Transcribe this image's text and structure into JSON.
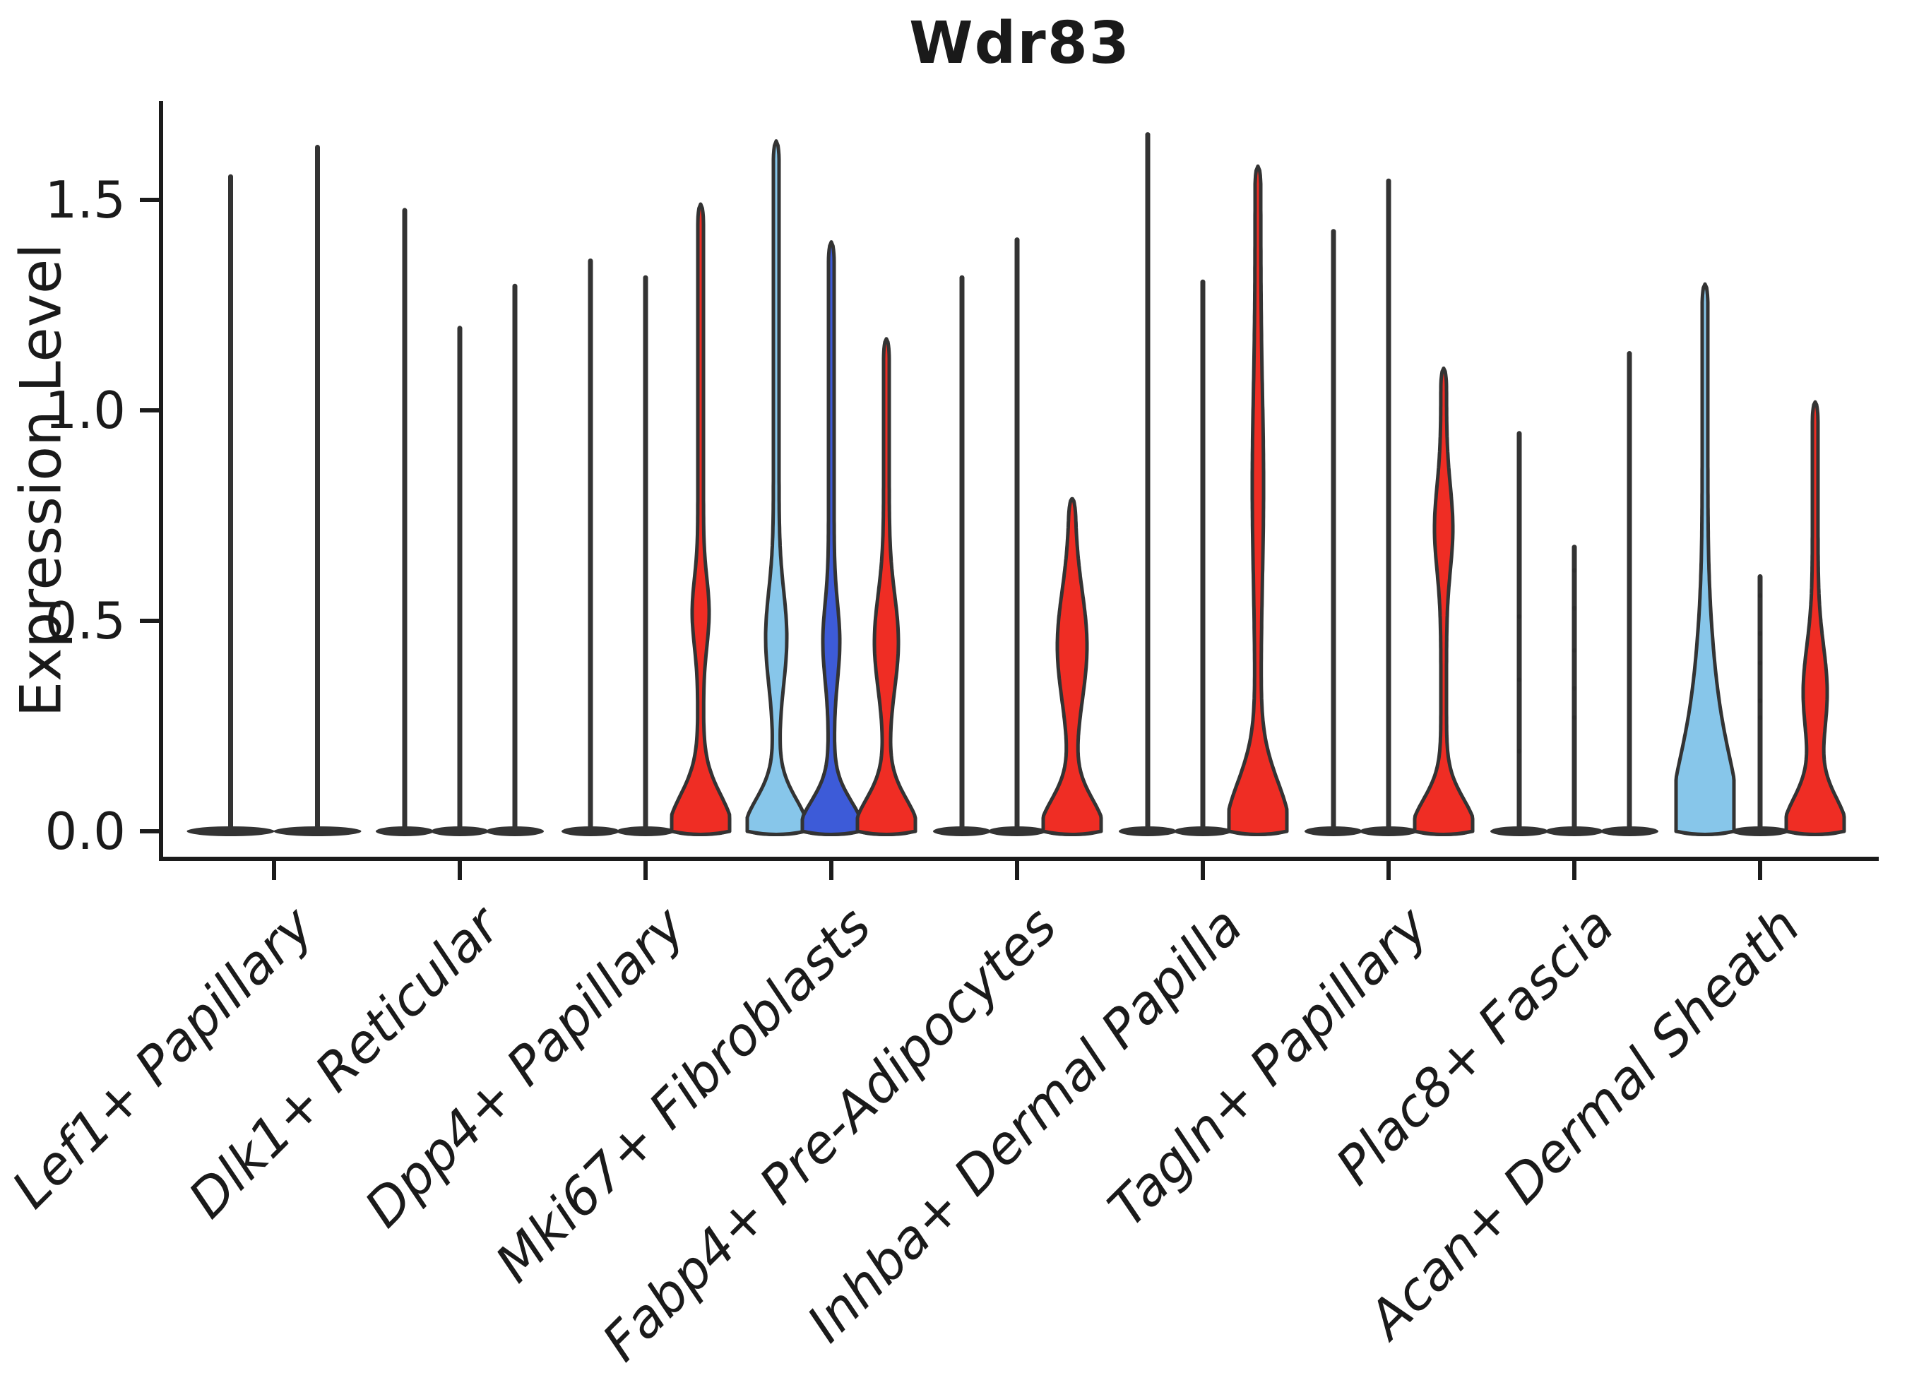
{
  "figure": {
    "title": "Wdr83",
    "background": "#ffffff"
  },
  "palette": {
    "red": "#EF2D24",
    "light_blue": "#87C6EA",
    "dark_blue": "#3D5BD8",
    "plain": "#333333",
    "edge": "#333333",
    "spine": "#1b1b1b"
  },
  "chart_data": {
    "type": "violin",
    "title": "Wdr83",
    "xlabel": "",
    "ylabel": "Expression Level",
    "ylim": [
      -0.065,
      1.735
    ],
    "yticks": [
      0.0,
      0.5,
      1.0,
      1.5
    ],
    "ytick_labels": [
      "0.0",
      "0.5",
      "1.0",
      "1.5"
    ],
    "grid": false,
    "legend": "none",
    "categories": [
      "Lef1+ Papillary",
      "Dlk1+ Reticular",
      "Dpp4+ Papillary",
      "Mki67+ Fibroblasts",
      "Fabp4+ Pre-Adipocytes",
      "Inhba+ Dermal Papilla",
      "Tagln+ Papillary",
      "Plac8+ Fascia",
      "Acan+ Dermal Sheath"
    ],
    "groups": [
      {
        "category": "Lef1+ Papillary",
        "violins": [
          {
            "color": "plain",
            "max": 1.56
          },
          {
            "color": "plain",
            "max": 1.63
          }
        ]
      },
      {
        "category": "Dlk1+ Reticular",
        "violins": [
          {
            "color": "plain",
            "max": 1.48
          },
          {
            "color": "plain",
            "max": 1.2
          },
          {
            "color": "plain",
            "max": 1.3
          }
        ]
      },
      {
        "category": "Dpp4+ Papillary",
        "violins": [
          {
            "color": "plain",
            "max": 1.36
          },
          {
            "color": "plain",
            "max": 1.32
          },
          {
            "color": "red",
            "max": 1.49,
            "base_sigma": 0.085,
            "bulge": {
              "center": 0.52,
              "spread": 0.08,
              "halfwidth": 8
            }
          }
        ]
      },
      {
        "category": "Mki67+ Fibroblasts",
        "violins": [
          {
            "color": "light_blue",
            "max": 1.64,
            "base_sigma": 0.075,
            "bulge": {
              "center": 0.46,
              "spread": 0.11,
              "halfwidth": 11
            }
          },
          {
            "color": "dark_blue",
            "max": 1.4,
            "base_sigma": 0.07,
            "bulge": {
              "center": 0.45,
              "spread": 0.09,
              "halfwidth": 8
            }
          },
          {
            "color": "red",
            "max": 1.17,
            "base_sigma": 0.075,
            "bulge": {
              "center": 0.45,
              "spread": 0.11,
              "halfwidth": 13
            }
          }
        ]
      },
      {
        "category": "Fabp4+ Pre-Adipocytes",
        "violins": [
          {
            "color": "plain",
            "max": 1.32
          },
          {
            "color": "plain",
            "max": 1.41
          },
          {
            "color": "red",
            "max": 0.79,
            "base_sigma": 0.075,
            "bulge": {
              "center": 0.44,
              "spread": 0.13,
              "halfwidth": 17
            }
          }
        ]
      },
      {
        "category": "Inhba+ Dermal Papilla",
        "violins": [
          {
            "color": "plain",
            "max": 1.66
          },
          {
            "color": "plain",
            "max": 1.31
          },
          {
            "color": "red",
            "max": 1.58,
            "base_sigma": 0.115,
            "bulge": {
              "center": 0.82,
              "spread": 0.22,
              "halfwidth": 4
            }
          }
        ]
      },
      {
        "category": "Tagln+ Papillary",
        "violins": [
          {
            "color": "plain",
            "max": 1.43
          },
          {
            "color": "plain",
            "max": 1.55
          },
          {
            "color": "red",
            "max": 1.1,
            "base_sigma": 0.075,
            "bulge": {
              "center": 0.72,
              "spread": 0.1,
              "halfwidth": 9
            }
          }
        ]
      },
      {
        "category": "Plac8+ Fascia",
        "violins": [
          {
            "color": "plain",
            "max": 0.95,
            "points": [
              0.51,
              0.36,
              0.19
            ]
          },
          {
            "color": "plain",
            "max": 0.68,
            "points": [
              0.62,
              0.53,
              0.43,
              0.34,
              0.27
            ]
          },
          {
            "color": "plain",
            "max": 1.14
          }
        ]
      },
      {
        "category": "Acan+ Dermal Sheath",
        "violins": [
          {
            "color": "light_blue",
            "max": 1.3,
            "base_sigma": 0.16,
            "bulge": {
              "center": 0.28,
              "spread": 0.18,
              "halfwidth": 10
            }
          },
          {
            "color": "plain",
            "max": 0.61,
            "points": [
              0.56,
              0.47,
              0.4,
              0.31,
              0.27
            ]
          },
          {
            "color": "red",
            "max": 1.02,
            "base_sigma": 0.08,
            "bulge": {
              "center": 0.33,
              "spread": 0.11,
              "halfwidth": 13
            }
          }
        ]
      }
    ]
  }
}
